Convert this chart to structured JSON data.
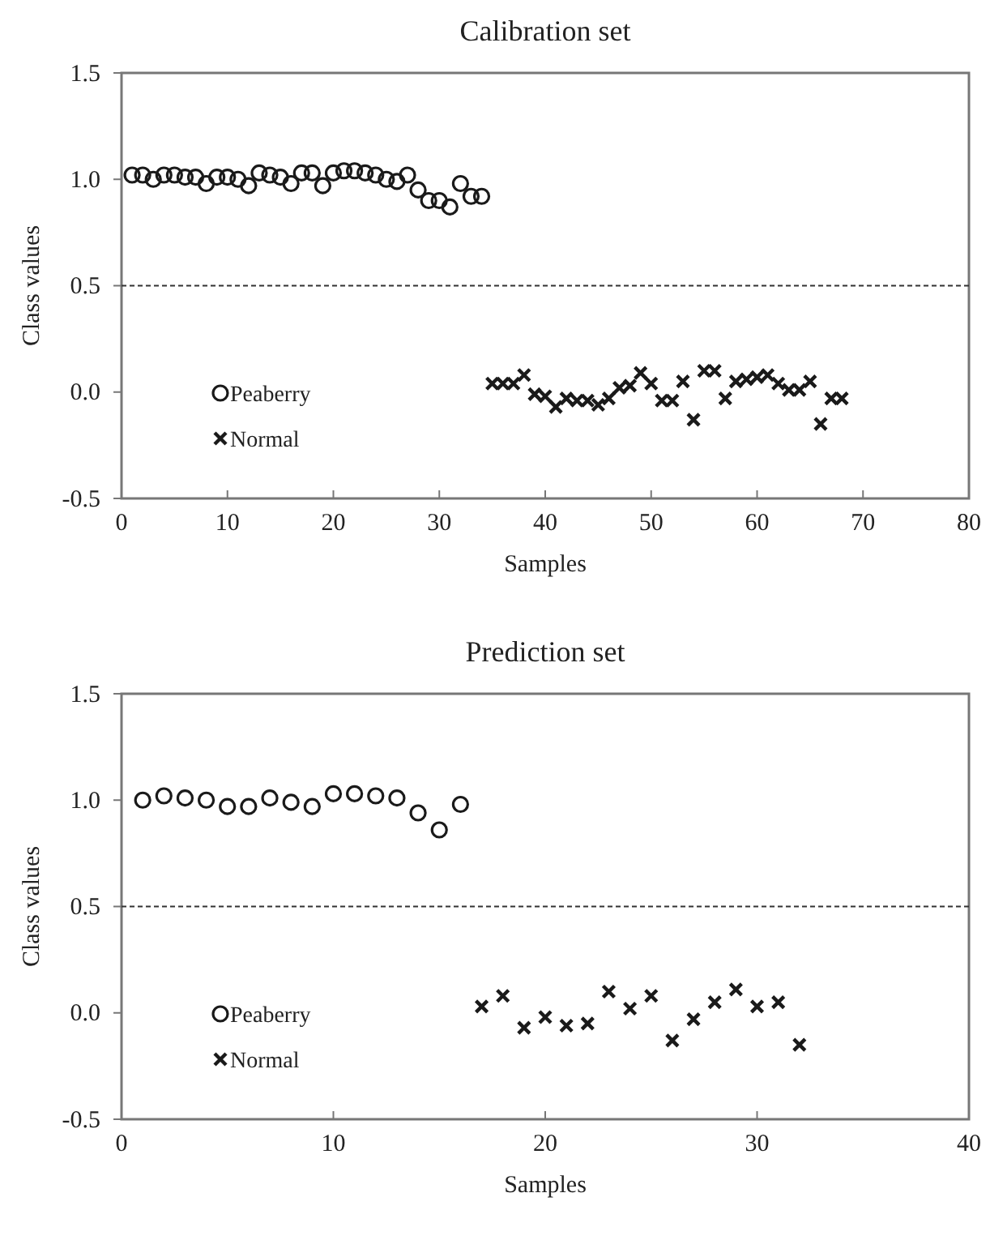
{
  "chart_data": [
    {
      "type": "scatter",
      "title": "Calibration set",
      "xlabel": "Samples",
      "ylabel": "Class values",
      "xlim": [
        0,
        80
      ],
      "xticks": [
        0,
        10,
        20,
        30,
        40,
        50,
        60,
        70,
        80
      ],
      "ylim": [
        -0.5,
        1.5
      ],
      "yticks": [
        {
          "value": -0.5,
          "label": "-0.5"
        },
        {
          "value": 0,
          "label": "0.0"
        },
        {
          "value": 0.5,
          "label": "0.5"
        },
        {
          "value": 1,
          "label": "1.0"
        },
        {
          "value": 1.5,
          "label": "1.5"
        }
      ],
      "legend": "bottom left",
      "grid": false,
      "ref_lines": [
        {
          "axis": "y",
          "value": 0.5,
          "color": "#333333",
          "line_style": "dashed"
        }
      ],
      "series": [
        {
          "name": "Peaberry",
          "color": "#1a1a1a",
          "marker": "circle",
          "x": [
            1,
            2,
            3,
            4,
            5,
            6,
            7,
            8,
            9,
            10,
            11,
            12,
            13,
            14,
            15,
            16,
            17,
            18,
            19,
            20,
            21,
            22,
            23,
            24,
            25,
            26,
            27,
            28,
            29,
            30,
            31,
            32,
            33,
            34
          ],
          "values": [
            1.02,
            1.02,
            1.0,
            1.02,
            1.02,
            1.01,
            1.01,
            0.98,
            1.01,
            1.01,
            1.0,
            0.97,
            1.03,
            1.02,
            1.01,
            0.98,
            1.03,
            1.03,
            0.97,
            1.03,
            1.04,
            1.04,
            1.03,
            1.02,
            1.0,
            0.99,
            1.02,
            0.95,
            0.9,
            0.9,
            0.87,
            0.98,
            0.92,
            0.92
          ]
        },
        {
          "name": "Normal",
          "color": "#1a1a1a",
          "marker": "cross",
          "x": [
            35,
            36,
            37,
            38,
            39,
            40,
            41,
            42,
            43,
            44,
            45,
            46,
            47,
            48,
            49,
            50,
            51,
            52,
            53,
            54,
            55,
            56,
            57,
            58,
            59,
            60,
            61,
            62,
            63,
            64,
            65,
            66,
            67,
            68
          ],
          "values": [
            0.04,
            0.04,
            0.04,
            0.08,
            -0.01,
            -0.02,
            -0.07,
            -0.03,
            -0.04,
            -0.04,
            -0.06,
            -0.03,
            0.02,
            0.03,
            0.09,
            0.04,
            -0.04,
            -0.04,
            0.05,
            -0.13,
            0.1,
            0.1,
            -0.03,
            0.05,
            0.06,
            0.07,
            0.08,
            0.04,
            0.01,
            0.01,
            0.05,
            -0.15,
            -0.03,
            -0.03
          ]
        }
      ]
    },
    {
      "type": "scatter",
      "title": "Prediction set",
      "xlabel": "Samples",
      "ylabel": "Class values",
      "xlim": [
        0,
        40
      ],
      "xticks": [
        0,
        10,
        20,
        30,
        40
      ],
      "ylim": [
        -0.5,
        1.5
      ],
      "yticks": [
        {
          "value": -0.5,
          "label": "-0.5"
        },
        {
          "value": 0,
          "label": "0.0"
        },
        {
          "value": 0.5,
          "label": "0.5"
        },
        {
          "value": 1,
          "label": "1.0"
        },
        {
          "value": 1.5,
          "label": "1.5"
        }
      ],
      "legend": "bottom left",
      "grid": false,
      "ref_lines": [
        {
          "axis": "y",
          "value": 0.5,
          "color": "#333333",
          "line_style": "dashed"
        }
      ],
      "series": [
        {
          "name": "Peaberry",
          "color": "#1a1a1a",
          "marker": "circle",
          "x": [
            1,
            2,
            3,
            4,
            5,
            6,
            7,
            8,
            9,
            10,
            11,
            12,
            13,
            14,
            15,
            16
          ],
          "values": [
            1.0,
            1.02,
            1.01,
            1.0,
            0.97,
            0.97,
            1.01,
            0.99,
            0.97,
            1.03,
            1.03,
            1.02,
            1.01,
            0.94,
            0.86,
            0.98
          ]
        },
        {
          "name": "Normal",
          "color": "#1a1a1a",
          "marker": "cross",
          "x": [
            17,
            18,
            19,
            20,
            21,
            22,
            23,
            24,
            25,
            26,
            27,
            28,
            29,
            30,
            31,
            32
          ],
          "values": [
            0.03,
            0.08,
            -0.07,
            -0.02,
            -0.06,
            -0.05,
            0.1,
            0.02,
            0.08,
            -0.13,
            -0.03,
            0.05,
            0.11,
            0.03,
            0.05,
            -0.15
          ]
        }
      ]
    }
  ]
}
